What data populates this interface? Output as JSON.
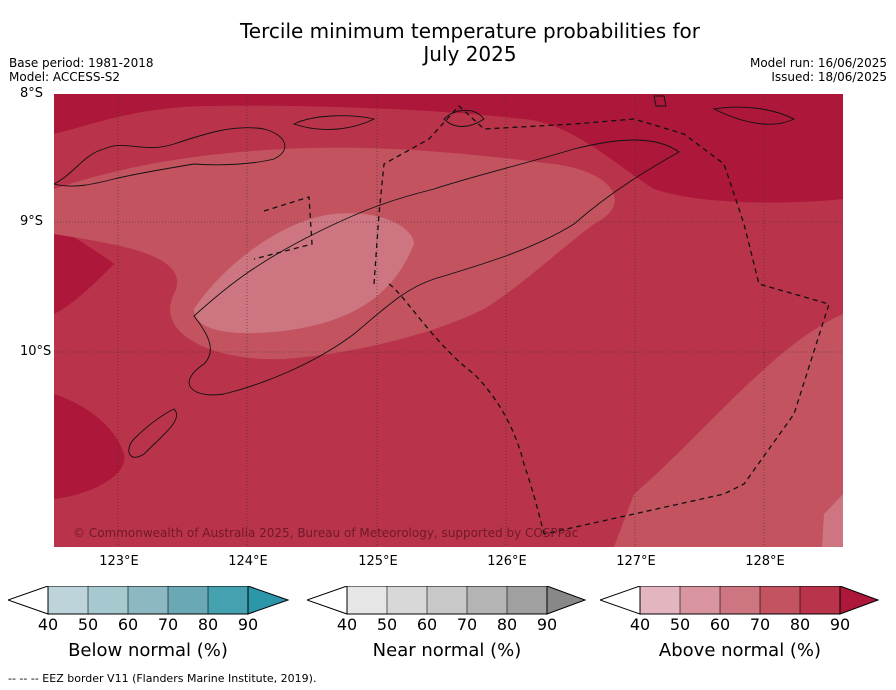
{
  "title_line1": "Tercile minimum temperature probabilities for",
  "title_line2": "July 2025",
  "base_period": "Base period: 1981-2018",
  "model": "Model: ACCESS-S2",
  "model_run": "Model run: 16/06/2025",
  "issued": "Issued: 18/06/2025",
  "lat_labels": [
    "8°S",
    "9°S",
    "10°S"
  ],
  "lon_labels": [
    "123°E",
    "124°E",
    "125°E",
    "126°E",
    "127°E",
    "128°E"
  ],
  "copyright": "© Commonwealth of Australia 2025, Bureau of Meteorology, supported by COSPPac",
  "footer": "--  --  -- EEZ border V11 (Flanders Marine Institute, 2019).",
  "colorbars": [
    {
      "title": "Below normal (%)",
      "ticks": [
        "40",
        "50",
        "60",
        "70",
        "80",
        "90"
      ],
      "colors": [
        "#bed4db",
        "#a6c8cf",
        "#8bb8c2",
        "#6aa8b5",
        "#45a0af",
        "#2a96a8"
      ]
    },
    {
      "title": "Near normal (%)",
      "ticks": [
        "40",
        "50",
        "60",
        "70",
        "80",
        "90"
      ],
      "colors": [
        "#e6e6e6",
        "#d8d8d8",
        "#c8c8c8",
        "#b4b4b4",
        "#a0a0a0",
        "#888888"
      ]
    },
    {
      "title": "Above normal (%)",
      "ticks": [
        "40",
        "50",
        "60",
        "70",
        "80",
        "90"
      ],
      "colors": [
        "#e3b6bf",
        "#d8959f",
        "#cd7681",
        "#c2535f",
        "#b9334a",
        "#ac173a"
      ]
    }
  ]
}
